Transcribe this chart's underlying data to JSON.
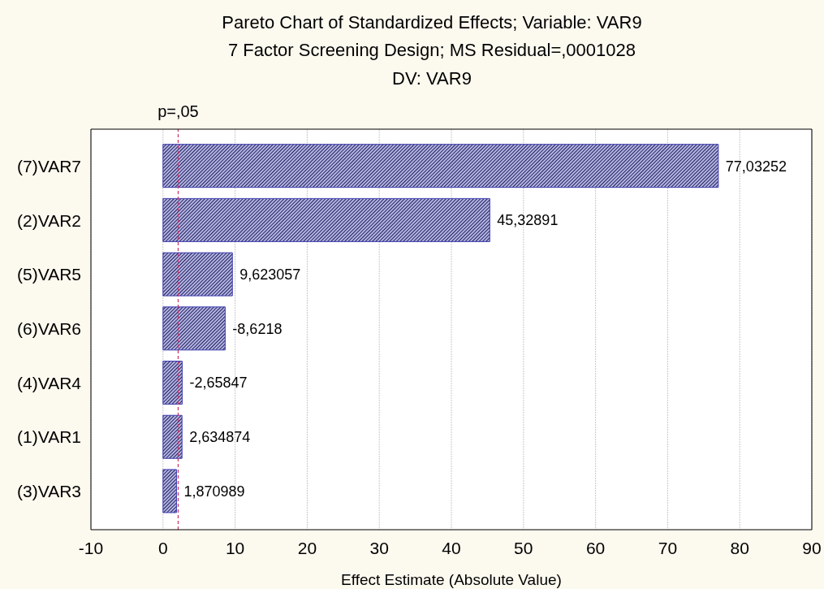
{
  "chart_data": {
    "type": "bar",
    "orientation": "horizontal",
    "title": "Pareto Chart of Standardized Effects; Variable: VAR9",
    "subtitle": "7 Factor Screening Design; MS Residual=,0001028\nDV: VAR9",
    "xlabel": "Effect Estimate (Absolute Value)",
    "categories": [
      "(7)VAR7",
      "(2)VAR2",
      "(5)VAR5",
      "(6)VAR6",
      "(4)VAR4",
      "(1)VAR1",
      "(3)VAR3"
    ],
    "values": [
      77.03252,
      45.32891,
      9.623057,
      8.6218,
      2.65847,
      2.634874,
      1.870989
    ],
    "value_labels": [
      "77,03252",
      "45,32891",
      "9,623057",
      "-8,6218",
      "-2,65847",
      "2,634874",
      "1,870989"
    ],
    "color": "#3c3cb0",
    "xlim": [
      -10,
      90
    ],
    "xticks": [
      -10,
      0,
      10,
      20,
      30,
      40,
      50,
      60,
      70,
      80,
      90
    ],
    "grid": "x",
    "ref_lines": [
      {
        "axis": "x",
        "value": 2.1,
        "label": "p=,05",
        "color": "#cc3366",
        "line_style": "dashed"
      }
    ]
  }
}
